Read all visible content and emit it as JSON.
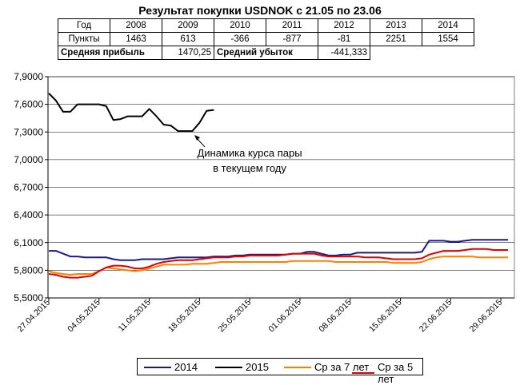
{
  "title": "Результат покупки USDNOK с 21.05 по 23.06",
  "table": {
    "header_label": "Год",
    "row_label": "Пункты",
    "years": [
      "2008",
      "2009",
      "2010",
      "2011",
      "2012",
      "2013",
      "2014"
    ],
    "points": [
      "1463",
      "613",
      "-366",
      "-877",
      "-81",
      "2251",
      "1554"
    ],
    "avg_profit_label": "Средняя прибыль",
    "avg_profit_value": "1470,25",
    "avg_loss_label": "Средний убыток",
    "avg_loss_value": "-441,333"
  },
  "annotation": {
    "line1": "Динамика курса пары",
    "line2": "в текущем году"
  },
  "chart_data": {
    "type": "line",
    "title": "Результат покупки USDNOK с 21.05 по 23.06",
    "y_ticks": [
      "5,5000",
      "5,8000",
      "6,1000",
      "6,4000",
      "6,7000",
      "7,0000",
      "7,3000",
      "7,6000",
      "7,9000"
    ],
    "x_ticks": [
      "27.04.2015",
      "04.05.2015",
      "11.05.2015",
      "18.05.2015",
      "25.05.2015",
      "01.06.2015",
      "08.06.2015",
      "15.06.2015",
      "22.06.2015",
      "29.06.2015"
    ],
    "ylim": [
      5.5,
      7.9
    ],
    "grid": "horizontal",
    "legend_position": "bottom",
    "series": [
      {
        "name": "2014",
        "color": "#1a1a8c",
        "values": [
          6.01,
          6.01,
          5.98,
          5.95,
          5.95,
          5.94,
          5.94,
          5.94,
          5.94,
          5.92,
          5.91,
          5.91,
          5.91,
          5.92,
          5.92,
          5.92,
          5.92,
          5.93,
          5.94,
          5.94,
          5.94,
          5.94,
          5.94,
          5.95,
          5.95,
          5.95,
          5.96,
          5.96,
          5.97,
          5.97,
          5.97,
          5.97,
          5.97,
          5.97,
          5.98,
          5.98,
          6.0,
          6.0,
          5.98,
          5.96,
          5.96,
          5.97,
          5.97,
          5.99,
          5.99,
          5.99,
          5.99,
          5.99,
          5.99,
          5.99,
          5.99,
          5.99,
          6.0,
          6.12,
          6.12,
          6.12,
          6.11,
          6.11,
          6.12,
          6.13,
          6.13,
          6.13,
          6.13,
          6.13,
          6.13
        ]
      },
      {
        "name": "2015",
        "color": "#000000",
        "values": [
          7.72,
          7.64,
          7.52,
          7.52,
          7.6,
          7.6,
          7.6,
          7.6,
          7.58,
          7.43,
          7.44,
          7.47,
          7.47,
          7.47,
          7.55,
          7.47,
          7.38,
          7.37,
          7.31,
          7.31,
          7.31,
          7.4,
          7.53,
          7.54
        ]
      },
      {
        "name": "Ср за 7 лет",
        "color": "#ff8000",
        "values": [
          5.79,
          5.77,
          5.76,
          5.75,
          5.76,
          5.76,
          5.76,
          5.79,
          5.83,
          5.82,
          5.81,
          5.8,
          5.79,
          5.8,
          5.82,
          5.84,
          5.86,
          5.86,
          5.86,
          5.86,
          5.87,
          5.87,
          5.87,
          5.88,
          5.89,
          5.89,
          5.89,
          5.89,
          5.89,
          5.89,
          5.89,
          5.89,
          5.89,
          5.89,
          5.9,
          5.9,
          5.9,
          5.9,
          5.9,
          5.9,
          5.89,
          5.89,
          5.89,
          5.89,
          5.89,
          5.89,
          5.89,
          5.89,
          5.88,
          5.88,
          5.88,
          5.88,
          5.89,
          5.92,
          5.94,
          5.95,
          5.95,
          5.95,
          5.95,
          5.95,
          5.94,
          5.94,
          5.94,
          5.94,
          5.94
        ]
      },
      {
        "name": "Ср за 5 лет",
        "color": "#e00000",
        "values": [
          5.76,
          5.75,
          5.73,
          5.72,
          5.72,
          5.73,
          5.74,
          5.79,
          5.83,
          5.85,
          5.85,
          5.84,
          5.82,
          5.82,
          5.84,
          5.87,
          5.89,
          5.9,
          5.91,
          5.91,
          5.91,
          5.92,
          5.93,
          5.94,
          5.94,
          5.94,
          5.95,
          5.95,
          5.96,
          5.96,
          5.96,
          5.96,
          5.96,
          5.97,
          5.98,
          5.98,
          5.98,
          5.98,
          5.96,
          5.95,
          5.95,
          5.95,
          5.95,
          5.95,
          5.94,
          5.94,
          5.94,
          5.93,
          5.92,
          5.92,
          5.92,
          5.92,
          5.93,
          5.97,
          5.99,
          6.01,
          6.01,
          6.01,
          6.02,
          6.03,
          6.03,
          6.03,
          6.02,
          6.02,
          6.02
        ]
      }
    ]
  }
}
